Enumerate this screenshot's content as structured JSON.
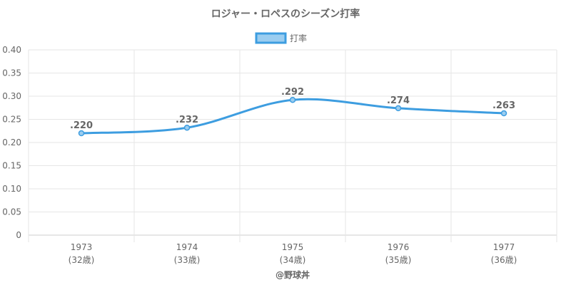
{
  "chart_data": {
    "type": "line",
    "title": "ロジャー・ロペスのシーズン打率",
    "categories": [
      "1973",
      "1974",
      "1975",
      "1976",
      "1977"
    ],
    "sub_categories": [
      "(32歳)",
      "(33歳)",
      "(34歳)",
      "(35歳)",
      "(36歳)"
    ],
    "series": [
      {
        "name": "打率",
        "values": [
          0.22,
          0.232,
          0.292,
          0.274,
          0.263
        ],
        "labels": [
          ".220",
          ".232",
          ".292",
          ".274",
          ".263"
        ]
      }
    ],
    "ylim": [
      0,
      0.4
    ],
    "yticks": [
      "0",
      "0.05",
      "0.10",
      "0.15",
      "0.20",
      "0.25",
      "0.30",
      "0.35",
      "0.40"
    ],
    "grid": true,
    "legend": "top-center",
    "line_color": "#3d9de0",
    "legend_fill": "#9bcdf0",
    "credit": "@野球丼"
  }
}
